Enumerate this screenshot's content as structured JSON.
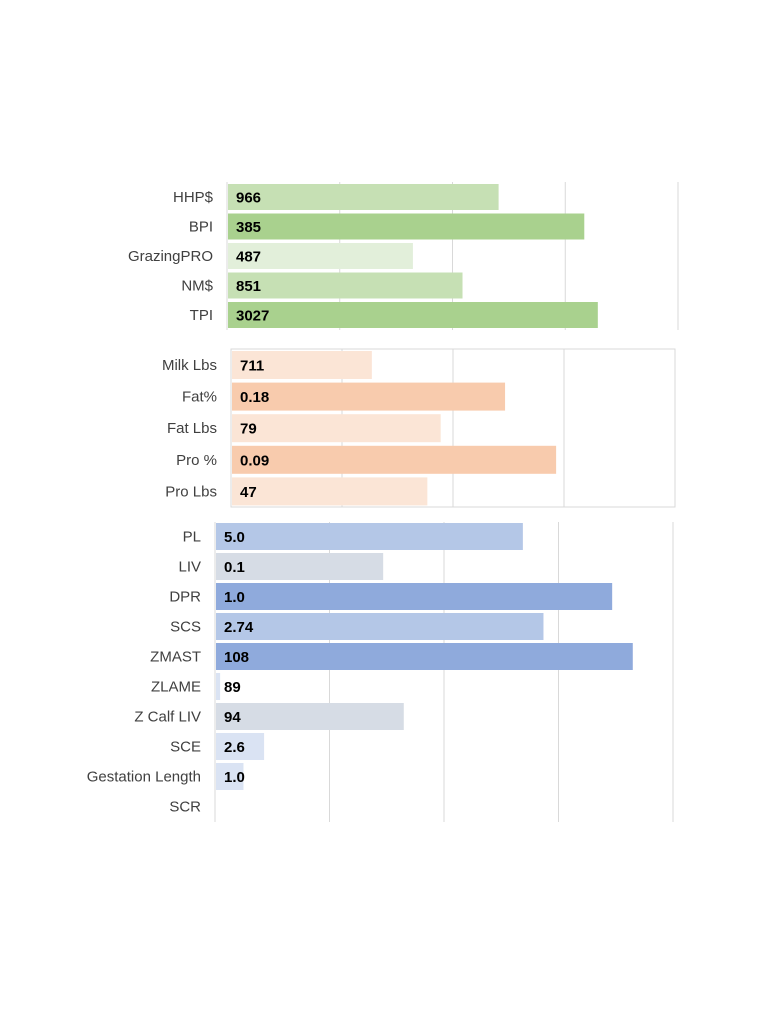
{
  "chart_data": [
    {
      "type": "bar",
      "orientation": "horizontal",
      "categories": [
        "HHP$",
        "BPI",
        "GrazingPRO",
        "NM$",
        "TPI"
      ],
      "values": [
        966,
        385,
        487,
        851,
        3027
      ],
      "value_labels": [
        "966",
        "385",
        "487",
        "851",
        "3027"
      ],
      "bar_fill_fraction": [
        0.6,
        0.79,
        0.41,
        0.52,
        0.82
      ],
      "bar_colors": [
        "#c6e0b4",
        "#a9d18e",
        "#e2efda",
        "#c6e0b4",
        "#a9d18e"
      ],
      "grid": true,
      "border": false
    },
    {
      "type": "bar",
      "orientation": "horizontal",
      "categories": [
        "Milk Lbs",
        "Fat%",
        "Fat Lbs",
        "Pro %",
        "Pro Lbs"
      ],
      "values": [
        711,
        0.18,
        79,
        0.09,
        47
      ],
      "value_labels": [
        "711",
        "0.18",
        "79",
        "0.09",
        "47"
      ],
      "bar_fill_fraction": [
        0.315,
        0.615,
        0.47,
        0.73,
        0.44
      ],
      "bar_colors": [
        "#fbe5d6",
        "#f8cbad",
        "#fbe5d6",
        "#f8cbad",
        "#fbe5d6"
      ],
      "grid": true,
      "border": true
    },
    {
      "type": "bar",
      "orientation": "horizontal",
      "categories": [
        "PL",
        "LIV",
        "DPR",
        "SCS",
        "ZMAST",
        "ZLAME",
        "Z Calf LIV",
        "SCE",
        "Gestation Length",
        "SCR"
      ],
      "values": [
        5.0,
        0.1,
        1.0,
        2.74,
        108,
        89,
        94,
        2.6,
        1.0,
        null
      ],
      "value_labels": [
        "5.0",
        "0.1",
        "1.0",
        "2.74",
        "108",
        "89",
        "94",
        "2.6",
        "1.0",
        ""
      ],
      "bar_fill_fraction": [
        0.67,
        0.365,
        0.865,
        0.715,
        0.91,
        0.009,
        0.41,
        0.105,
        0.06,
        0
      ],
      "bar_colors": [
        "#b4c7e7",
        "#d6dce5",
        "#8faadc",
        "#b4c7e7",
        "#8faadc",
        "#dae3f3",
        "#d6dce5",
        "#dae3f3",
        "#dae3f3",
        "#dae3f3"
      ],
      "grid": true,
      "border": false
    }
  ]
}
